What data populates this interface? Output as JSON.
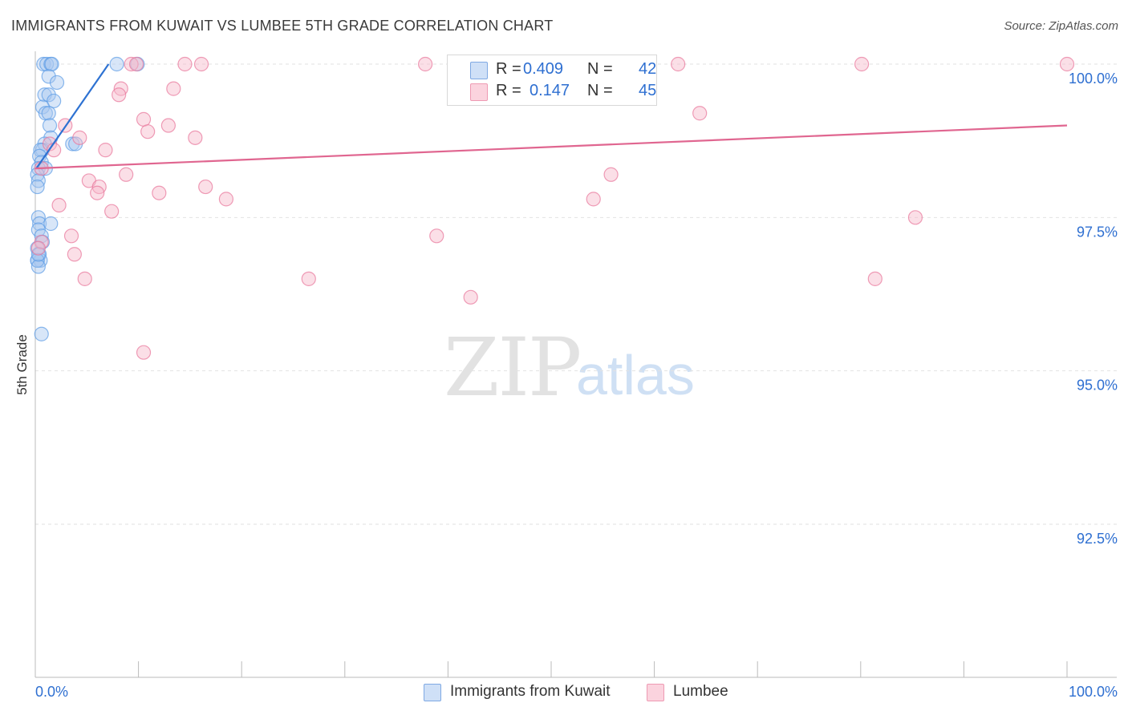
{
  "title": "IMMIGRANTS FROM KUWAIT VS LUMBEE 5TH GRADE CORRELATION CHART",
  "source": "Source: ZipAtlas.com",
  "watermark": {
    "zip": "ZIP",
    "atlas": "atlas"
  },
  "stats": {
    "rows": [
      {
        "r_label": "R =",
        "r_value": "0.409",
        "n_label": "N =",
        "n_value": "42",
        "color": "#a8c8f0"
      },
      {
        "r_label": "R =",
        "r_value": "0.147",
        "n_label": "N =",
        "n_value": "45",
        "color": "#f7b8c9"
      }
    ]
  },
  "legend": {
    "items": [
      {
        "label": "Immigrants from Kuwait",
        "color": "#a8c8f0"
      },
      {
        "label": "Lumbee",
        "color": "#f7b8c9"
      }
    ]
  },
  "chart_data": {
    "type": "scatter",
    "title": "IMMIGRANTS FROM KUWAIT VS LUMBEE 5TH GRADE CORRELATION CHART",
    "xlabel": "",
    "ylabel": "5th Grade",
    "xlim": [
      0,
      100
    ],
    "ylim": [
      90,
      100.2
    ],
    "x_tick_labels": {
      "left": "0.0%",
      "right": "100.0%"
    },
    "y_ticks": [
      {
        "value": 100.0,
        "label": "100.0%"
      },
      {
        "value": 97.5,
        "label": "97.5%"
      },
      {
        "value": 95.0,
        "label": "95.0%"
      },
      {
        "value": 92.5,
        "label": "92.5%"
      }
    ],
    "grid": true,
    "series": [
      {
        "name": "Immigrants from Kuwait",
        "color": "#5b9be6",
        "fill": "#a8c8f0",
        "trend": {
          "x": [
            0.1,
            7.1
          ],
          "y": [
            98.3,
            100.0
          ]
        },
        "points": [
          {
            "x": 0.8,
            "y": 100.0
          },
          {
            "x": 1.1,
            "y": 100.0
          },
          {
            "x": 1.5,
            "y": 100.0
          },
          {
            "x": 1.6,
            "y": 100.0
          },
          {
            "x": 7.9,
            "y": 100.0
          },
          {
            "x": 9.9,
            "y": 100.0
          },
          {
            "x": 1.3,
            "y": 99.8
          },
          {
            "x": 2.1,
            "y": 99.7
          },
          {
            "x": 0.9,
            "y": 99.5
          },
          {
            "x": 1.3,
            "y": 99.5
          },
          {
            "x": 1.8,
            "y": 99.4
          },
          {
            "x": 0.7,
            "y": 99.3
          },
          {
            "x": 1.0,
            "y": 99.2
          },
          {
            "x": 1.3,
            "y": 99.2
          },
          {
            "x": 1.4,
            "y": 99.0
          },
          {
            "x": 1.5,
            "y": 98.8
          },
          {
            "x": 0.9,
            "y": 98.7
          },
          {
            "x": 0.7,
            "y": 98.6
          },
          {
            "x": 3.6,
            "y": 98.7
          },
          {
            "x": 3.9,
            "y": 98.7
          },
          {
            "x": 0.5,
            "y": 98.6
          },
          {
            "x": 0.4,
            "y": 98.5
          },
          {
            "x": 0.6,
            "y": 98.4
          },
          {
            "x": 0.3,
            "y": 98.3
          },
          {
            "x": 1.0,
            "y": 98.3
          },
          {
            "x": 0.2,
            "y": 98.2
          },
          {
            "x": 0.3,
            "y": 98.1
          },
          {
            "x": 0.2,
            "y": 98.0
          },
          {
            "x": 0.3,
            "y": 97.5
          },
          {
            "x": 0.4,
            "y": 97.4
          },
          {
            "x": 1.5,
            "y": 97.4
          },
          {
            "x": 0.3,
            "y": 97.3
          },
          {
            "x": 0.6,
            "y": 97.2
          },
          {
            "x": 0.7,
            "y": 97.1
          },
          {
            "x": 0.2,
            "y": 97.0
          },
          {
            "x": 0.4,
            "y": 96.9
          },
          {
            "x": 0.5,
            "y": 96.8
          },
          {
            "x": 0.2,
            "y": 96.8
          },
          {
            "x": 0.6,
            "y": 95.6
          },
          {
            "x": 0.2,
            "y": 96.8
          },
          {
            "x": 0.3,
            "y": 96.7
          },
          {
            "x": 0.3,
            "y": 96.9
          }
        ]
      },
      {
        "name": "Lumbee",
        "color": "#e8759a",
        "fill": "#f7b8c9",
        "trend": {
          "x": [
            0,
            100
          ],
          "y": [
            98.3,
            99.0
          ]
        },
        "points": [
          {
            "x": 9.3,
            "y": 100.0
          },
          {
            "x": 9.8,
            "y": 100.0
          },
          {
            "x": 14.5,
            "y": 100.0
          },
          {
            "x": 16.1,
            "y": 100.0
          },
          {
            "x": 37.8,
            "y": 100.0
          },
          {
            "x": 46.7,
            "y": 100.0
          },
          {
            "x": 62.3,
            "y": 100.0
          },
          {
            "x": 80.1,
            "y": 100.0
          },
          {
            "x": 100.0,
            "y": 100.0
          },
          {
            "x": 8.3,
            "y": 99.6
          },
          {
            "x": 8.1,
            "y": 99.5
          },
          {
            "x": 13.4,
            "y": 99.6
          },
          {
            "x": 64.4,
            "y": 99.2
          },
          {
            "x": 10.5,
            "y": 99.1
          },
          {
            "x": 10.9,
            "y": 98.9
          },
          {
            "x": 12.9,
            "y": 99.0
          },
          {
            "x": 2.9,
            "y": 99.0
          },
          {
            "x": 4.3,
            "y": 98.8
          },
          {
            "x": 15.5,
            "y": 98.8
          },
          {
            "x": 1.4,
            "y": 98.7
          },
          {
            "x": 1.8,
            "y": 98.6
          },
          {
            "x": 6.8,
            "y": 98.6
          },
          {
            "x": 0.6,
            "y": 98.3
          },
          {
            "x": 8.8,
            "y": 98.2
          },
          {
            "x": 55.8,
            "y": 98.2
          },
          {
            "x": 5.2,
            "y": 98.1
          },
          {
            "x": 16.5,
            "y": 98.0
          },
          {
            "x": 6.2,
            "y": 98.0
          },
          {
            "x": 6.0,
            "y": 97.9
          },
          {
            "x": 12.0,
            "y": 97.9
          },
          {
            "x": 18.5,
            "y": 97.8
          },
          {
            "x": 54.1,
            "y": 97.8
          },
          {
            "x": 2.3,
            "y": 97.7
          },
          {
            "x": 7.4,
            "y": 97.6
          },
          {
            "x": 85.3,
            "y": 97.5
          },
          {
            "x": 3.5,
            "y": 97.2
          },
          {
            "x": 38.9,
            "y": 97.2
          },
          {
            "x": 0.6,
            "y": 97.1
          },
          {
            "x": 3.8,
            "y": 96.9
          },
          {
            "x": 4.8,
            "y": 96.5
          },
          {
            "x": 26.5,
            "y": 96.5
          },
          {
            "x": 81.4,
            "y": 96.5
          },
          {
            "x": 42.2,
            "y": 96.2
          },
          {
            "x": 10.5,
            "y": 95.3
          },
          {
            "x": 0.3,
            "y": 97.0
          }
        ]
      }
    ]
  }
}
